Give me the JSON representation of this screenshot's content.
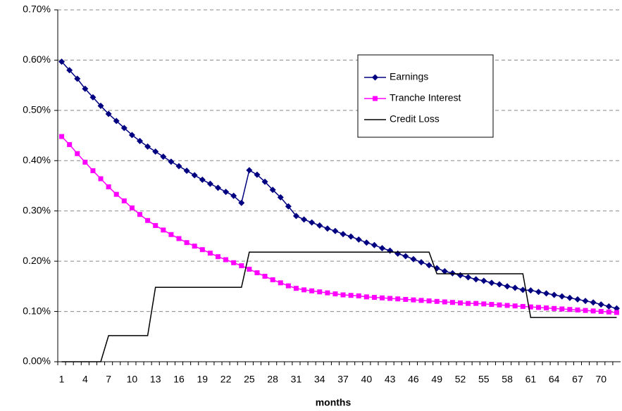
{
  "chart_data": {
    "type": "line",
    "x_label": "months",
    "categories": [
      1,
      null,
      null,
      4,
      null,
      null,
      7,
      null,
      null,
      10,
      null,
      null,
      13,
      null,
      null,
      16,
      null,
      null,
      19,
      null,
      null,
      22,
      null,
      null,
      25,
      null,
      null,
      28,
      null,
      null,
      31,
      null,
      null,
      34,
      null,
      null,
      37,
      null,
      null,
      40,
      null,
      null,
      43,
      null,
      null,
      46,
      null,
      null,
      49,
      null,
      null,
      52,
      null,
      null,
      55,
      null,
      null,
      58,
      null,
      null,
      61,
      null,
      null,
      64,
      null,
      null,
      67,
      null,
      null,
      70,
      null,
      null
    ],
    "ylim": [
      0,
      0.7
    ],
    "yticks": [
      {
        "value": 0,
        "label": "0.00%"
      },
      {
        "value": 0.1,
        "label": "0.10%"
      },
      {
        "value": 0.2,
        "label": "0.20%"
      },
      {
        "value": 0.3,
        "label": "0.30%"
      },
      {
        "value": 0.4,
        "label": "0.40%"
      },
      {
        "value": 0.5,
        "label": "0.50%"
      },
      {
        "value": 0.6,
        "label": "0.60%"
      },
      {
        "value": 0.7,
        "label": "0.70%"
      }
    ],
    "grid": true,
    "legend": "upper-right",
    "series": [
      {
        "name": "Earnings",
        "color": "#000080",
        "marker": "diamond",
        "values": [
          0.597,
          0.58,
          0.563,
          0.543,
          0.526,
          0.509,
          0.493,
          0.479,
          0.465,
          0.451,
          0.439,
          0.428,
          0.418,
          0.408,
          0.398,
          0.389,
          0.38,
          0.371,
          0.362,
          0.354,
          0.346,
          0.338,
          0.33,
          0.316,
          0.381,
          0.372,
          0.358,
          0.342,
          0.327,
          0.309,
          0.29,
          0.283,
          0.277,
          0.271,
          0.265,
          0.26,
          0.254,
          0.249,
          0.243,
          0.237,
          0.232,
          0.226,
          0.221,
          0.215,
          0.21,
          0.204,
          0.198,
          0.192,
          0.186,
          0.18,
          0.176,
          0.172,
          0.168,
          0.164,
          0.161,
          0.157,
          0.154,
          0.15,
          0.147,
          0.143,
          0.142,
          0.139,
          0.136,
          0.133,
          0.13,
          0.127,
          0.124,
          0.121,
          0.118,
          0.114,
          0.11,
          0.106
        ]
      },
      {
        "name": "Tranche Interest",
        "color": "#ff00ff",
        "marker": "square",
        "values": [
          0.448,
          0.432,
          0.414,
          0.397,
          0.38,
          0.364,
          0.348,
          0.333,
          0.32,
          0.306,
          0.293,
          0.281,
          0.271,
          0.262,
          0.253,
          0.245,
          0.237,
          0.23,
          0.223,
          0.216,
          0.209,
          0.203,
          0.197,
          0.191,
          0.184,
          0.177,
          0.17,
          0.163,
          0.157,
          0.151,
          0.146,
          0.143,
          0.141,
          0.139,
          0.137,
          0.135,
          0.133,
          0.132,
          0.131,
          0.129,
          0.128,
          0.127,
          0.126,
          0.125,
          0.124,
          0.123,
          0.122,
          0.121,
          0.12,
          0.119,
          0.118,
          0.117,
          0.116,
          0.116,
          0.115,
          0.114,
          0.113,
          0.112,
          0.111,
          0.11,
          0.109,
          0.108,
          0.107,
          0.106,
          0.105,
          0.104,
          0.103,
          0.102,
          0.101,
          0.1,
          0.099,
          0.098
        ]
      },
      {
        "name": "Credit Loss",
        "color": "#000000",
        "marker": "none",
        "values": [
          0,
          0,
          0,
          0,
          0,
          0,
          0.052,
          0.052,
          0.052,
          0.052,
          0.052,
          0.052,
          0.148,
          0.148,
          0.148,
          0.148,
          0.148,
          0.148,
          0.148,
          0.148,
          0.148,
          0.148,
          0.148,
          0.148,
          0.218,
          0.218,
          0.218,
          0.218,
          0.218,
          0.218,
          0.218,
          0.218,
          0.218,
          0.218,
          0.218,
          0.218,
          0.218,
          0.218,
          0.218,
          0.218,
          0.218,
          0.218,
          0.218,
          0.218,
          0.218,
          0.218,
          0.218,
          0.218,
          0.175,
          0.175,
          0.175,
          0.175,
          0.175,
          0.175,
          0.175,
          0.175,
          0.175,
          0.175,
          0.175,
          0.175,
          0.088,
          0.088,
          0.088,
          0.088,
          0.088,
          0.088,
          0.088,
          0.088,
          0.088,
          0.088,
          0.088,
          0.088
        ]
      }
    ]
  }
}
